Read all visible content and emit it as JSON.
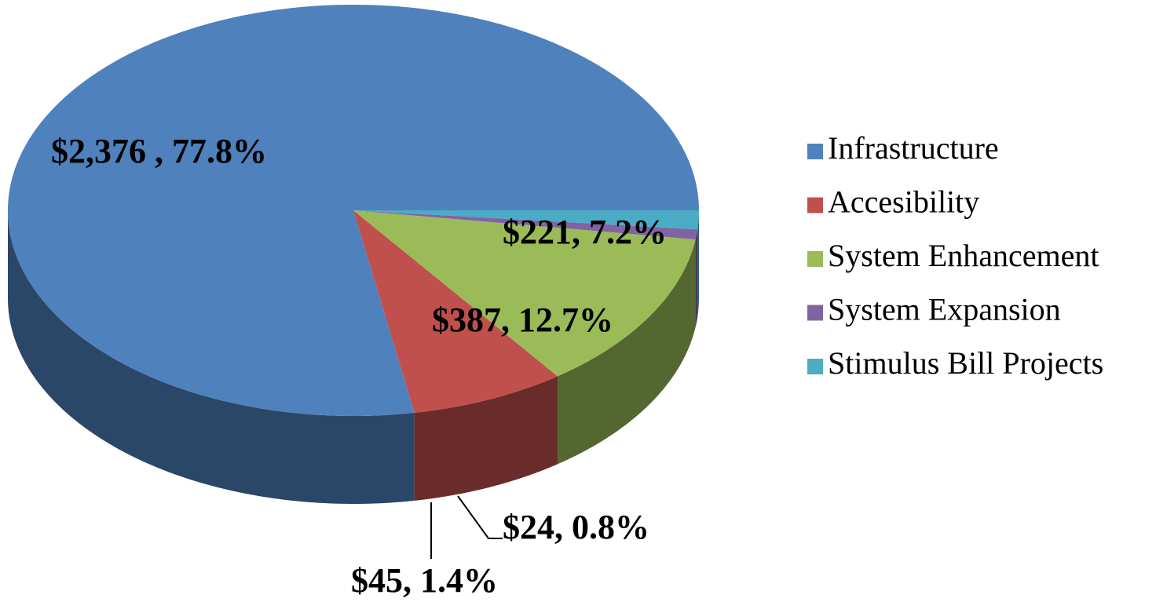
{
  "chart_data": {
    "type": "pie3d",
    "categories": [
      "Infrastructure",
      "Accesibility",
      "System Enhancement",
      "System Expansion",
      "Stimulus Bill Projects"
    ],
    "values": [
      2376,
      221,
      387,
      24,
      45
    ],
    "value_labels": [
      "$2,376 , 77.8%",
      "$221, 7.2%",
      "$387, 12.7%",
      "$24, 0.8%",
      "$45, 1.4%"
    ],
    "colors": [
      "#4f81bd",
      "#c0504d",
      "#9bbb59",
      "#8064a2",
      "#4bacc6"
    ],
    "legend": "right"
  }
}
